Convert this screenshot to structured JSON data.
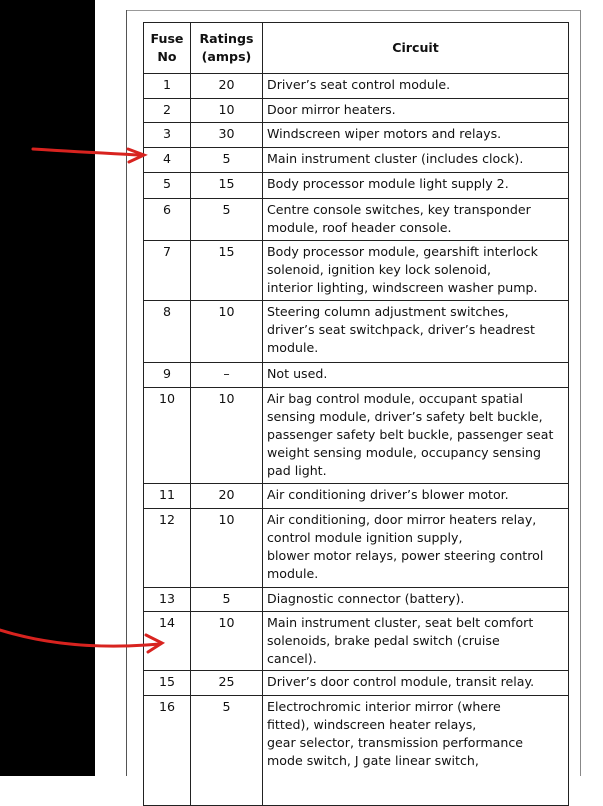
{
  "table": {
    "header": {
      "fuse": [
        "Fuse",
        "No"
      ],
      "rating": [
        "Ratings",
        "(amps)"
      ],
      "circuit": "Circuit"
    },
    "rows": [
      {
        "fuse": "1",
        "rating": "20",
        "circuit": [
          "Driver’s seat control module."
        ]
      },
      {
        "fuse": "2",
        "rating": "10",
        "circuit": [
          "Door mirror heaters."
        ]
      },
      {
        "fuse": "3",
        "rating": "30",
        "circuit": [
          "Windscreen wiper motors and relays."
        ]
      },
      {
        "fuse": "4",
        "rating": "5",
        "circuit": [
          "Main instrument cluster (includes clock)."
        ]
      },
      {
        "fuse": "5",
        "rating": "15",
        "circuit": [
          "Body processor module light supply 2."
        ]
      },
      {
        "fuse": "6",
        "rating": "5",
        "circuit": [
          "Centre console switches, key transponder",
          "module, roof header console."
        ]
      },
      {
        "fuse": "7",
        "rating": "15",
        "circuit": [
          "Body processor module, gearshift interlock",
          "solenoid, ignition key lock solenoid,",
          "interior lighting, windscreen washer pump."
        ]
      },
      {
        "fuse": "8",
        "rating": "10",
        "circuit": [
          "Steering column adjustment switches,",
          "driver’s seat switchpack, driver’s headrest",
          "module."
        ]
      },
      {
        "fuse": "9",
        "rating": "–",
        "circuit": [
          "Not used."
        ]
      },
      {
        "fuse": "10",
        "rating": "10",
        "circuit": [
          "Air bag control module, occupant spatial",
          "sensing module, driver’s safety belt buckle,",
          "passenger safety belt buckle, passenger seat",
          "weight sensing module, occupancy sensing",
          "pad light."
        ]
      },
      {
        "fuse": "11",
        "rating": "20",
        "circuit": [
          "Air conditioning driver’s blower motor."
        ]
      },
      {
        "fuse": "12",
        "rating": "10",
        "circuit": [
          "Air conditioning, door mirror heaters relay,",
          "control module ignition supply,",
          "blower motor relays, power steering control",
          "module."
        ]
      },
      {
        "fuse": "13",
        "rating": "5",
        "circuit": [
          "Diagnostic connector (battery)."
        ]
      },
      {
        "fuse": "14",
        "rating": "10",
        "circuit": [
          "Main instrument cluster, seat belt comfort",
          "solenoids, brake pedal switch (cruise",
          "cancel)."
        ]
      },
      {
        "fuse": "15",
        "rating": "25",
        "circuit": [
          "Driver’s door control module, transit relay."
        ]
      },
      {
        "fuse": "16",
        "rating": "5",
        "circuit": [
          "Electrochromic interior mirror (where",
          "fitted), windscreen heater relays,",
          "gear selector, transmission performance",
          "mode switch, J gate linear switch,"
        ]
      }
    ]
  }
}
